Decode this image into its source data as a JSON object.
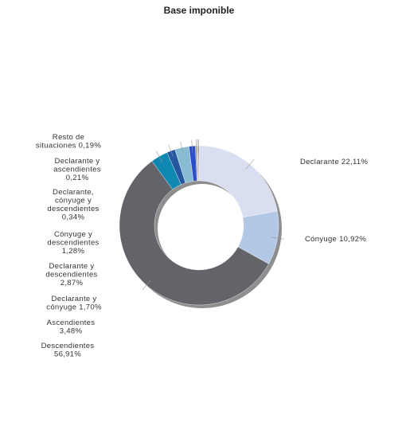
{
  "chart_data": {
    "type": "pie",
    "variant": "donut",
    "title": "Base imponible",
    "slices": [
      {
        "label": "Declarante 22,11%",
        "value": 22.11,
        "color": "#d9dff0"
      },
      {
        "label": "Cónyuge 10,92%",
        "value": 10.92,
        "color": "#b3c7e6"
      },
      {
        "label": "Descendientes 56,91%",
        "value": 56.91,
        "color": "#626469"
      },
      {
        "label": "Ascendientes 3,48%",
        "value": 3.48,
        "color": "#0e88b0"
      },
      {
        "label": "Declarante y cónyuge 1,70%",
        "value": 1.7,
        "color": "#2558a0"
      },
      {
        "label": "Declarante y descendientes 2,87%",
        "value": 2.87,
        "color": "#87bcd2"
      },
      {
        "label": "Cónyuge y descendientes 1,28%",
        "value": 1.28,
        "color": "#2c4fc9"
      },
      {
        "label": "Declarante, cónyuge y descendientes 0,34%",
        "value": 0.34,
        "color": "#9a9a9a"
      },
      {
        "label": "Declarante y ascendientes 0,21%",
        "value": 0.21,
        "color": "#c9c9c9"
      },
      {
        "label": "Resto de situaciones 0,19%",
        "value": 0.19,
        "color": "#7e7e7e"
      }
    ],
    "label_lines": [
      [
        "Declarante 22,11%"
      ],
      [
        "Cónyuge 10,92%"
      ],
      [
        "Descendientes",
        "56,91%"
      ],
      [
        "Ascendientes",
        "3,48%"
      ],
      [
        "Declarante y",
        "cónyuge 1,70%"
      ],
      [
        "Declarante y",
        "descendientes",
        "2,87%"
      ],
      [
        "Cónyuge y",
        "descendientes",
        "1,28%"
      ],
      [
        "Declarante,",
        "cónyuge y",
        "descendientes",
        "0,34%"
      ],
      [
        "Declarante y",
        "ascendientes",
        "0,21%"
      ],
      [
        "Resto de",
        "situaciones 0,19%"
      ]
    ],
    "legend": "none"
  }
}
